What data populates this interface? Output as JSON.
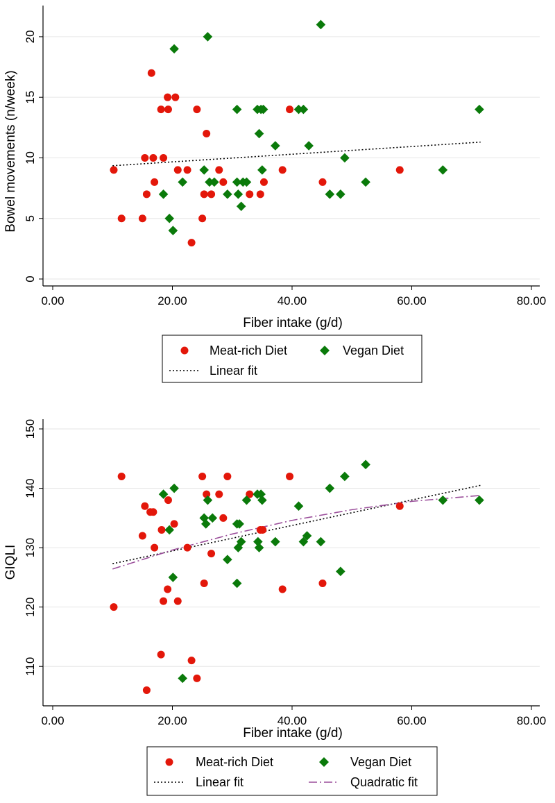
{
  "chart_data": [
    {
      "type": "scatter",
      "xlabel": "Fiber intake (g/d)",
      "ylabel": "Bowel movements (n/week)",
      "xlim": [
        0,
        80
      ],
      "ylim": [
        0,
        22
      ],
      "xticks": [
        0,
        20,
        40,
        60,
        80
      ],
      "xtick_labels": [
        "0.00",
        "20.00",
        "40.00",
        "60.00",
        "80.00"
      ],
      "yticks": [
        0,
        5,
        10,
        15,
        20
      ],
      "ytick_labels": [
        "0",
        "5",
        "10",
        "15",
        "20"
      ],
      "grid": "horizontal",
      "legend": {
        "placement": "bottom",
        "entries": [
          "Meat-rich Diet",
          "Vegan Diet",
          "Linear fit"
        ]
      },
      "colors": {
        "meat": "#e3170a",
        "vegan": "#0a7a0a",
        "linear": "#000000"
      },
      "series": [
        {
          "name": "Meat-rich Diet",
          "marker": "circle",
          "points": [
            [
              10.2,
              9
            ],
            [
              11.5,
              5
            ],
            [
              15.0,
              5
            ],
            [
              15.4,
              10
            ],
            [
              15.7,
              7
            ],
            [
              16.5,
              17
            ],
            [
              16.8,
              10
            ],
            [
              17.0,
              8
            ],
            [
              18.1,
              14
            ],
            [
              18.5,
              10
            ],
            [
              19.2,
              15
            ],
            [
              19.3,
              14
            ],
            [
              20.5,
              15
            ],
            [
              20.9,
              9
            ],
            [
              22.5,
              9
            ],
            [
              24.1,
              14
            ],
            [
              25.0,
              5
            ],
            [
              25.3,
              7
            ],
            [
              25.7,
              12
            ],
            [
              26.5,
              7
            ],
            [
              23.2,
              3
            ],
            [
              27.8,
              9
            ],
            [
              28.5,
              8
            ],
            [
              32.9,
              7
            ],
            [
              34.7,
              7
            ],
            [
              35.3,
              8
            ],
            [
              38.4,
              9
            ],
            [
              39.6,
              14
            ],
            [
              45.1,
              8
            ],
            [
              58.0,
              9
            ]
          ]
        },
        {
          "name": "Vegan Diet",
          "marker": "diamond",
          "points": [
            [
              18.5,
              7
            ],
            [
              19.5,
              5
            ],
            [
              20.1,
              4
            ],
            [
              20.3,
              19
            ],
            [
              21.7,
              8
            ],
            [
              25.3,
              9
            ],
            [
              25.9,
              20
            ],
            [
              26.2,
              8
            ],
            [
              27.0,
              8
            ],
            [
              29.2,
              7
            ],
            [
              30.8,
              14
            ],
            [
              30.8,
              8
            ],
            [
              31.0,
              7
            ],
            [
              31.5,
              6
            ],
            [
              31.8,
              8
            ],
            [
              32.4,
              8
            ],
            [
              34.2,
              14
            ],
            [
              34.5,
              12
            ],
            [
              34.8,
              14
            ],
            [
              35.0,
              9
            ],
            [
              35.2,
              14
            ],
            [
              37.2,
              11
            ],
            [
              41.1,
              14
            ],
            [
              41.9,
              14
            ],
            [
              42.8,
              11
            ],
            [
              44.8,
              21
            ],
            [
              46.3,
              7
            ],
            [
              48.1,
              7
            ],
            [
              48.8,
              10
            ],
            [
              52.3,
              8
            ],
            [
              65.2,
              9
            ],
            [
              71.3,
              14
            ]
          ]
        },
        {
          "name": "Linear fit",
          "style": "dotted",
          "points": [
            [
              10.0,
              9.35
            ],
            [
              71.5,
              11.3
            ]
          ]
        }
      ]
    },
    {
      "type": "scatter",
      "xlabel": "Fiber intake (g/d)",
      "ylabel": "GIQLI",
      "xlim": [
        0,
        80
      ],
      "ylim": [
        105,
        150
      ],
      "xticks": [
        0,
        20,
        40,
        60,
        80
      ],
      "xtick_labels": [
        "0.00",
        "20.00",
        "40.00",
        "60.00",
        "80.00"
      ],
      "yticks": [
        110,
        120,
        130,
        140,
        150
      ],
      "ytick_labels": [
        "110",
        "120",
        "130",
        "140",
        "150"
      ],
      "grid": "horizontal",
      "legend": {
        "placement": "bottom",
        "entries": [
          "Meat-rich Diet",
          "Vegan Diet",
          "Linear fit",
          "Quadratic fit"
        ]
      },
      "colors": {
        "meat": "#e3170a",
        "vegan": "#0a7a0a",
        "linear": "#000000",
        "quadratic": "#9b4f9b"
      },
      "series": [
        {
          "name": "Meat-rich Diet",
          "marker": "circle",
          "points": [
            [
              10.2,
              120
            ],
            [
              11.5,
              142
            ],
            [
              15.0,
              132
            ],
            [
              15.4,
              137
            ],
            [
              15.7,
              106
            ],
            [
              16.3,
              136
            ],
            [
              16.8,
              136
            ],
            [
              17.0,
              130
            ],
            [
              18.1,
              112
            ],
            [
              18.2,
              133
            ],
            [
              18.5,
              121
            ],
            [
              19.2,
              123
            ],
            [
              19.3,
              138
            ],
            [
              20.3,
              134
            ],
            [
              20.9,
              121
            ],
            [
              22.5,
              130
            ],
            [
              23.2,
              111
            ],
            [
              24.1,
              108
            ],
            [
              25.0,
              142
            ],
            [
              25.3,
              124
            ],
            [
              25.7,
              139
            ],
            [
              26.5,
              129
            ],
            [
              27.8,
              139
            ],
            [
              28.5,
              135
            ],
            [
              29.2,
              142
            ],
            [
              32.9,
              139
            ],
            [
              34.7,
              133
            ],
            [
              35.1,
              133
            ],
            [
              38.4,
              123
            ],
            [
              39.6,
              142
            ],
            [
              45.1,
              124
            ],
            [
              58.0,
              137
            ]
          ]
        },
        {
          "name": "Vegan Diet",
          "marker": "diamond",
          "points": [
            [
              18.5,
              139
            ],
            [
              19.5,
              133
            ],
            [
              20.1,
              125
            ],
            [
              20.3,
              140
            ],
            [
              21.7,
              108
            ],
            [
              25.3,
              135
            ],
            [
              25.6,
              134
            ],
            [
              25.9,
              138
            ],
            [
              26.7,
              135
            ],
            [
              29.2,
              128
            ],
            [
              30.8,
              124
            ],
            [
              30.8,
              134
            ],
            [
              31.0,
              130
            ],
            [
              31.2,
              134
            ],
            [
              31.5,
              131
            ],
            [
              32.4,
              138
            ],
            [
              34.2,
              139
            ],
            [
              34.3,
              131
            ],
            [
              34.5,
              130
            ],
            [
              34.8,
              139
            ],
            [
              35.0,
              138
            ],
            [
              37.2,
              131
            ],
            [
              41.1,
              137
            ],
            [
              41.9,
              131
            ],
            [
              42.5,
              132
            ],
            [
              44.8,
              131
            ],
            [
              46.3,
              140
            ],
            [
              48.1,
              126
            ],
            [
              48.8,
              142
            ],
            [
              52.3,
              144
            ],
            [
              65.2,
              138
            ],
            [
              71.3,
              138
            ]
          ]
        },
        {
          "name": "Linear fit",
          "style": "dotted",
          "points": [
            [
              10.0,
              127.3
            ],
            [
              71.5,
              140.5
            ]
          ]
        },
        {
          "name": "Quadratic fit",
          "style": "dash-dot",
          "points": [
            [
              10.0,
              126.4
            ],
            [
              20.0,
              129.6
            ],
            [
              30.0,
              132.3
            ],
            [
              40.0,
              134.6
            ],
            [
              50.0,
              136.4
            ],
            [
              60.0,
              137.8
            ],
            [
              71.5,
              138.8
            ]
          ]
        }
      ]
    }
  ]
}
